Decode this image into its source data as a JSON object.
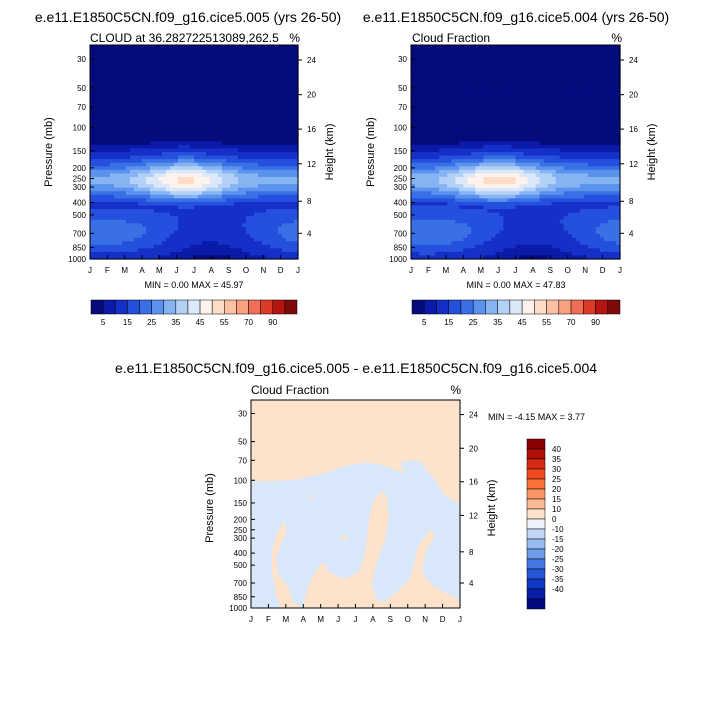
{
  "chart_data": [
    {
      "type": "contour",
      "title": "e.e11.E1850C5CN.f09_g16.cice5.005 (yrs 26-50)",
      "left_label": "CLOUD at 36.282722513089,262.5",
      "right_label": "%",
      "xlabel": "",
      "ylabel": "Pressure (mb)",
      "y2label": "Height (km)",
      "months": [
        "J",
        "F",
        "M",
        "A",
        "M",
        "J",
        "J",
        "A",
        "S",
        "O",
        "N",
        "D",
        "J"
      ],
      "pressure_ticks": [
        "30",
        "50",
        "70",
        "100",
        "150",
        "200",
        "250",
        "300",
        "400",
        "500",
        "700",
        "850",
        "1000"
      ],
      "height_ticks": [
        "24",
        "20",
        "16",
        "12",
        "8",
        "4"
      ],
      "minmax": "MIN =   0.00 MAX =  45.97",
      "min": 0.0,
      "max": 45.97,
      "colorbar_labels": [
        "5",
        "15",
        "25",
        "35",
        "45",
        "55",
        "70",
        "90"
      ],
      "colorbar_colors": [
        "#050a7d",
        "#0b1aa8",
        "#1530c8",
        "#2550dd",
        "#3a70e6",
        "#5a92ee",
        "#86b4f3",
        "#b3d1f7",
        "#dbe8fa",
        "#fdf3ec",
        "#fddcc5",
        "#fcc1a2",
        "#f8a07f",
        "#ef6e54",
        "#de3a2a",
        "#b51410",
        "#7f0a0a"
      ],
      "peak_month": 5.5,
      "peak_pressure": 260
    },
    {
      "type": "contour",
      "title": "e.e11.E1850C5CN.f09_g16.cice5.004 (yrs 26-50)",
      "left_label": "Cloud Fraction",
      "right_label": "%",
      "xlabel": "",
      "ylabel": "Pressure (mb)",
      "y2label": "Height (km)",
      "months": [
        "J",
        "F",
        "M",
        "A",
        "M",
        "J",
        "J",
        "A",
        "S",
        "O",
        "N",
        "D",
        "J"
      ],
      "pressure_ticks": [
        "30",
        "50",
        "70",
        "100",
        "150",
        "200",
        "250",
        "300",
        "400",
        "500",
        "700",
        "850",
        "1000"
      ],
      "height_ticks": [
        "24",
        "20",
        "16",
        "12",
        "8",
        "4"
      ],
      "minmax": "MIN =   0.00 MAX =  47.83",
      "min": 0.0,
      "max": 47.83,
      "colorbar_labels": [
        "5",
        "15",
        "25",
        "35",
        "45",
        "55",
        "70",
        "90"
      ],
      "colorbar_colors": [
        "#050a7d",
        "#0b1aa8",
        "#1530c8",
        "#2550dd",
        "#3a70e6",
        "#5a92ee",
        "#86b4f3",
        "#b3d1f7",
        "#dbe8fa",
        "#fdf3ec",
        "#fddcc5",
        "#fcc1a2",
        "#f8a07f",
        "#ef6e54",
        "#de3a2a",
        "#b51410",
        "#7f0a0a"
      ],
      "peak_month": 5.0,
      "peak_pressure": 260
    },
    {
      "type": "contour",
      "title": "e.e11.E1850C5CN.f09_g16.cice5.005 - e.e11.E1850C5CN.f09_g16.cice5.004",
      "left_label": "Cloud Fraction",
      "right_label": "%",
      "xlabel": "",
      "ylabel": "Pressure (mb)",
      "y2label": "Height (km)",
      "months": [
        "J",
        "F",
        "M",
        "A",
        "M",
        "J",
        "J",
        "A",
        "S",
        "O",
        "N",
        "D",
        "J"
      ],
      "pressure_ticks": [
        "30",
        "50",
        "70",
        "100",
        "150",
        "200",
        "250",
        "300",
        "400",
        "500",
        "700",
        "850",
        "1000"
      ],
      "height_ticks": [
        "24",
        "20",
        "16",
        "12",
        "8",
        "4"
      ],
      "minmax": "MIN =  -4.15 MAX =   3.77",
      "min": -4.15,
      "max": 3.77,
      "colorbar_labels": [
        "40",
        "35",
        "30",
        "25",
        "20",
        "15",
        "10",
        "0",
        "-10",
        "-15",
        "-20",
        "-25",
        "-30",
        "-35",
        "-40"
      ],
      "colorbar_colors": [
        "#8b0000",
        "#b30f0a",
        "#d62a15",
        "#f04a20",
        "#f8703a",
        "#fa9466",
        "#fcb892",
        "#fde3cc",
        "#eef2fa",
        "#c2d8f6",
        "#98bcf1",
        "#6c9bea",
        "#4479e2",
        "#2557d6",
        "#1036c4",
        "#071fa6",
        "#040a7e"
      ],
      "positive_color": "#fde3cc",
      "negative_color": "#d8e8fa"
    }
  ]
}
